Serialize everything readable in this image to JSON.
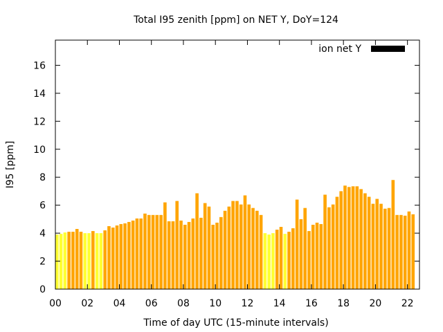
{
  "chart_data": {
    "type": "bar",
    "title": "Total I95 zenith [ppm] on NET Y, DoY=124",
    "xlabel": "Time of day UTC (15-minute intervals)",
    "ylabel": "I95 [ppm]",
    "xlim": [
      0,
      22.75
    ],
    "ylim": [
      0,
      17.8
    ],
    "interval_hours": 0.25,
    "bar_width_hours": 0.2,
    "x_ticks": [
      "00",
      "02",
      "04",
      "06",
      "08",
      "10",
      "12",
      "14",
      "16",
      "18",
      "20",
      "22"
    ],
    "x_tick_values": [
      0,
      2,
      4,
      6,
      8,
      10,
      12,
      14,
      16,
      18,
      20,
      22
    ],
    "y_ticks": [
      "0",
      "2",
      "4",
      "6",
      "8",
      "10",
      "12",
      "14",
      "16"
    ],
    "y_tick_values": [
      0,
      2,
      4,
      6,
      8,
      10,
      12,
      14,
      16
    ],
    "grid": false,
    "legend": {
      "position": "top-right",
      "label": "ion net Y",
      "color": "#000000"
    },
    "colors": {
      "high": "#ffa500",
      "low": "#ffff33",
      "low_threshold": 4.05
    },
    "series": [
      {
        "values": [
          3.9,
          3.95,
          4.05,
          4.1,
          4.1,
          4.3,
          4.1,
          4.0,
          4.0,
          4.15,
          4.0,
          4.0,
          4.2,
          4.5,
          4.4,
          4.55,
          4.65,
          4.7,
          4.8,
          4.9,
          5.05,
          5.05,
          5.4,
          5.3,
          5.3,
          5.3,
          5.3,
          6.2,
          4.85,
          4.85,
          6.3,
          4.9,
          4.6,
          4.8,
          5.05,
          6.85,
          5.1,
          6.15,
          5.9,
          4.6,
          4.75,
          5.15,
          5.6,
          5.9,
          6.3,
          6.3,
          6.05,
          6.7,
          6.05,
          5.8,
          5.6,
          5.3,
          4.0,
          3.9,
          4.0,
          4.25,
          4.45,
          3.95,
          4.1,
          4.35,
          6.4,
          5.0,
          5.8,
          4.15,
          4.6,
          4.75,
          4.65,
          6.75,
          5.85,
          6.05,
          6.6,
          7.0,
          7.4,
          7.3,
          7.35,
          7.35,
          7.15,
          6.85,
          6.6,
          6.1,
          6.45,
          6.1,
          5.75,
          5.8,
          7.8,
          5.3,
          5.3,
          5.25,
          5.55,
          5.35
        ]
      }
    ]
  }
}
